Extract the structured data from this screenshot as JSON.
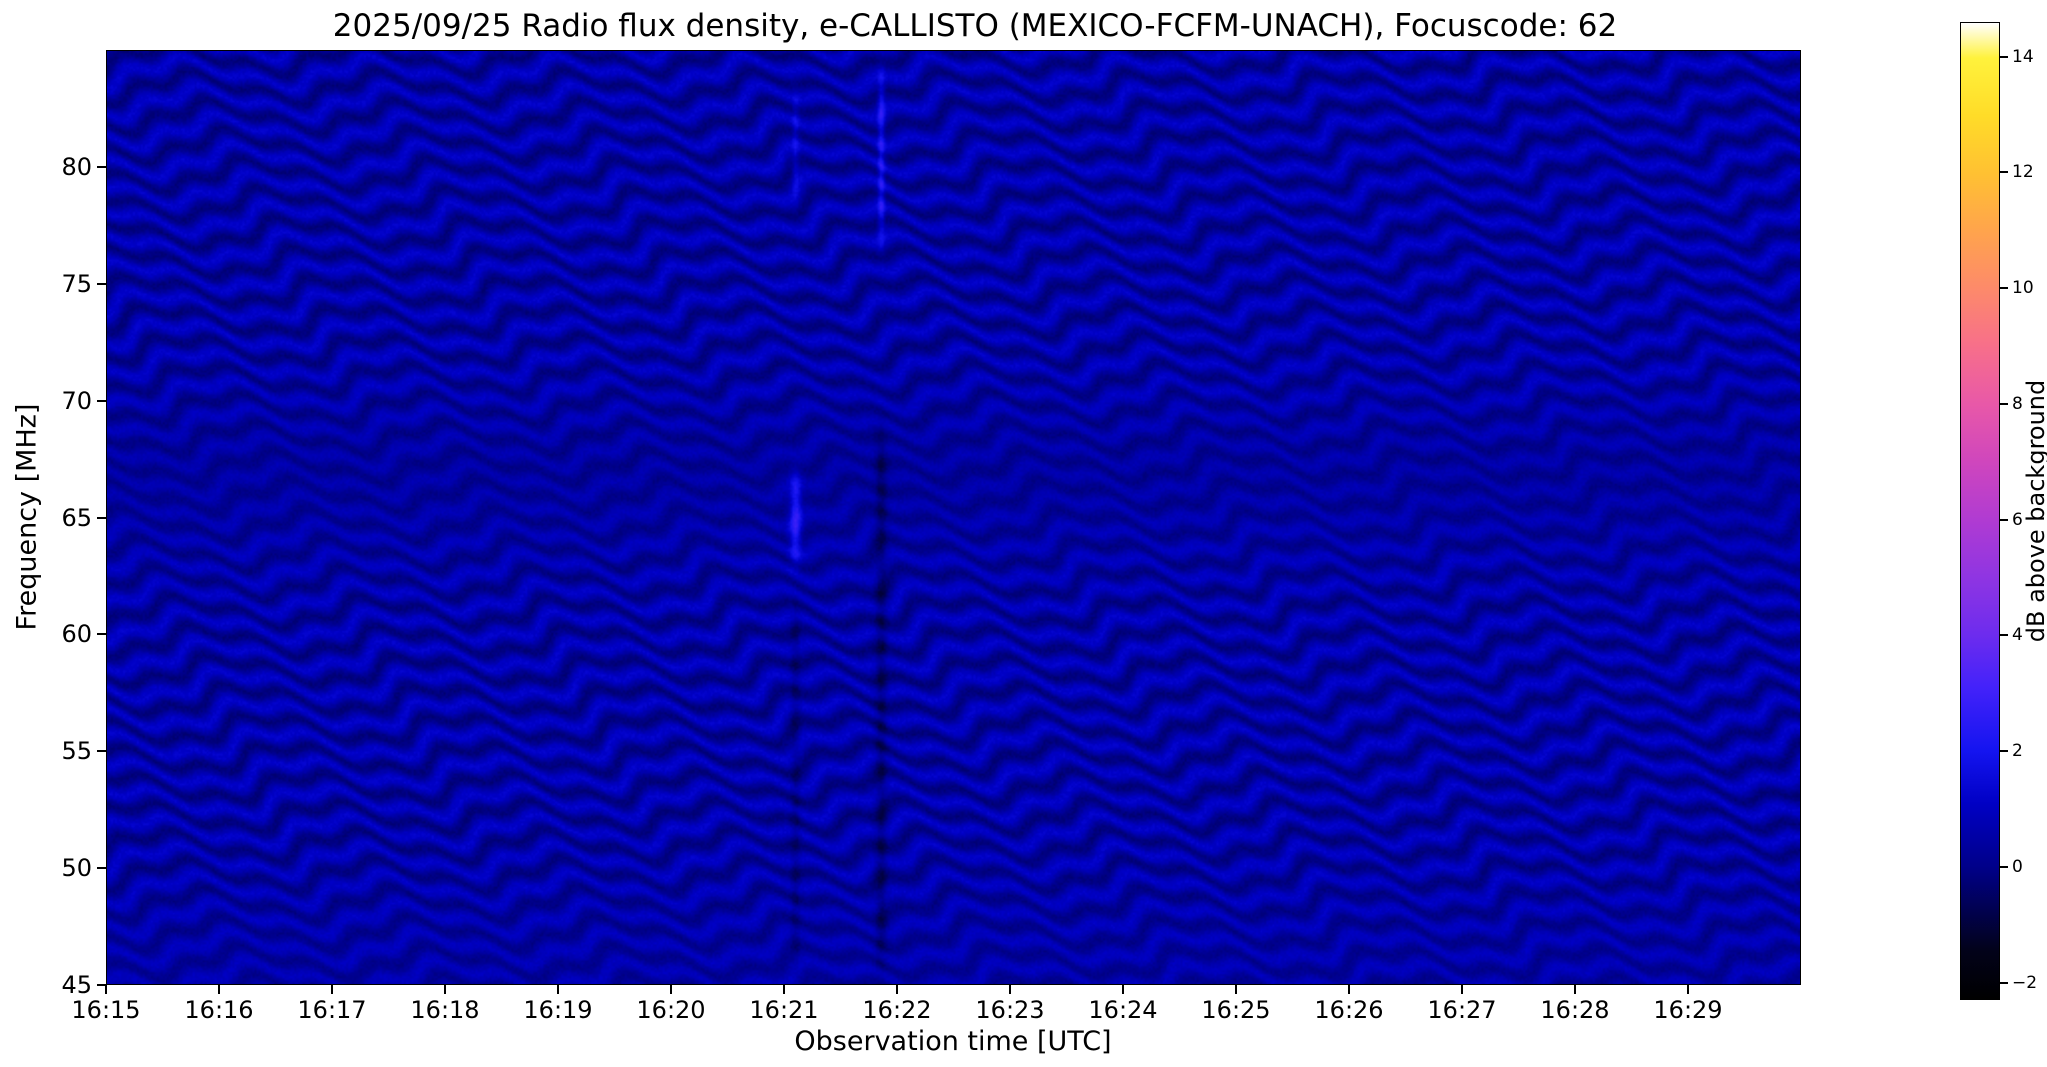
{
  "title": "2025/09/25  Radio flux density, e-CALLISTO (MEXICO-FCFM-UNACH), Focuscode: 62",
  "chart_data": {
    "type": "heatmap",
    "title": "2025/09/25  Radio flux density, e-CALLISTO (MEXICO-FCFM-UNACH), Focuscode: 62",
    "xlabel": "Observation time [UTC]",
    "ylabel": "Frequency [MHz]",
    "x_ticks": [
      "16:15",
      "16:16",
      "16:17",
      "16:18",
      "16:19",
      "16:20",
      "16:21",
      "16:22",
      "16:23",
      "16:24",
      "16:25",
      "16:26",
      "16:27",
      "16:28",
      "16:29"
    ],
    "x_span_minutes": 15,
    "ylim": [
      45,
      85
    ],
    "y_ticks": [
      {
        "label": "80",
        "value": 80
      },
      {
        "label": "75",
        "value": 75
      },
      {
        "label": "70",
        "value": 70
      },
      {
        "label": "65",
        "value": 65
      },
      {
        "label": "60",
        "value": 60
      },
      {
        "label": "55",
        "value": 55
      },
      {
        "label": "50",
        "value": 50
      },
      {
        "label": "45",
        "value": 45
      }
    ],
    "colorbar": {
      "label": "dB above background",
      "range": [
        -2.3,
        14.6
      ],
      "ticks": [
        {
          "label": "14",
          "value": 14
        },
        {
          "label": "12",
          "value": 12
        },
        {
          "label": "10",
          "value": 10
        },
        {
          "label": "8",
          "value": 8
        },
        {
          "label": "6",
          "value": 6
        },
        {
          "label": "4",
          "value": 4
        },
        {
          "label": "2",
          "value": 2
        },
        {
          "label": "0",
          "value": 0
        },
        {
          "label": "−2",
          "value": -2
        }
      ],
      "stops": [
        {
          "pos": 0.0,
          "color": "#000000"
        },
        {
          "pos": 0.05,
          "color": "#02021a"
        },
        {
          "pos": 0.136,
          "color": "#00008a"
        },
        {
          "pos": 0.2,
          "color": "#0000c4"
        },
        {
          "pos": 0.254,
          "color": "#1414f0"
        },
        {
          "pos": 0.32,
          "color": "#4422fa"
        },
        {
          "pos": 0.373,
          "color": "#6d2cee"
        },
        {
          "pos": 0.432,
          "color": "#8f35e2"
        },
        {
          "pos": 0.491,
          "color": "#b03bd2"
        },
        {
          "pos": 0.55,
          "color": "#cf46bd"
        },
        {
          "pos": 0.609,
          "color": "#e858a8"
        },
        {
          "pos": 0.669,
          "color": "#f76f8a"
        },
        {
          "pos": 0.728,
          "color": "#fd8a6a"
        },
        {
          "pos": 0.787,
          "color": "#ffa44c"
        },
        {
          "pos": 0.846,
          "color": "#ffc132"
        },
        {
          "pos": 0.905,
          "color": "#ffdc28"
        },
        {
          "pos": 0.964,
          "color": "#fff23c"
        },
        {
          "pos": 1.0,
          "color": "#ffffff"
        }
      ]
    },
    "pattern": {
      "description": "Dark blue spectrogram with wavy horizontal interference fringes; faint disturbance near 16:21 at ~65 MHz and dark vertical dropout just before 16:22",
      "base_db": 0.5,
      "fringe_spacing_mhz": 1.25,
      "fringe_depth": 0.7,
      "wave_amp": 0.5,
      "wave_period": 1.7,
      "wave_phase_k": 0.55,
      "wave_amp2": 0.25,
      "wave_period2": 0.55,
      "wave_phase_k2": 1.3,
      "mid_suppress": 0.45,
      "mid_center": 66.5,
      "mid_width": 3.5,
      "low_suppress": 0.35,
      "low_width": 4.0,
      "dip_depth": 0.15,
      "dip_center": 67,
      "dip_width": 2.5,
      "noise_db": 0.35,
      "features": [
        {
          "name": "bright-point-1621",
          "t": 6.1,
          "t_sigma": 0.05,
          "f_lo": 62.5,
          "f_hi": 67.5,
          "soft": 1.5,
          "amp": 2.0
        },
        {
          "name": "dark-line-1621",
          "t": 6.1,
          "t_sigma": 0.04,
          "f_lo": 45,
          "f_hi": 62,
          "soft": 2.0,
          "amp": -0.55
        },
        {
          "name": "bright-spot-top-1621",
          "t": 6.1,
          "t_sigma": 0.03,
          "f_lo": 78,
          "f_hi": 84,
          "soft": 2.0,
          "amp": 0.9
        },
        {
          "name": "dark-line-1622",
          "t": 6.86,
          "t_sigma": 0.05,
          "f_lo": 45,
          "f_hi": 69.5,
          "soft": 2.0,
          "amp": -0.85
        },
        {
          "name": "bright-line-top-1622",
          "t": 6.86,
          "t_sigma": 0.03,
          "f_lo": 76,
          "f_hi": 84.9,
          "soft": 2.0,
          "amp": 1.6
        }
      ]
    }
  }
}
